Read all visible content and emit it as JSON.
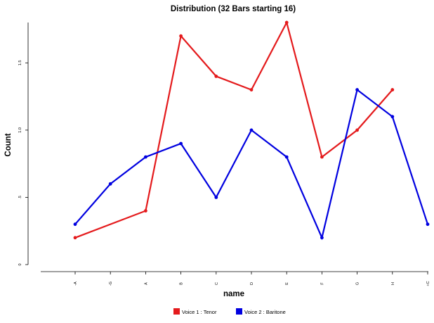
{
  "chart_data": {
    "type": "line",
    "title": "Distribution (32 Bars starting 16)",
    "xlabel": "name",
    "ylabel": "Count",
    "categories": [
      "-A",
      "-G",
      "A",
      "B",
      "C",
      "D",
      "E",
      "F",
      "G",
      "H",
      "+C"
    ],
    "yticks": [
      {
        "value": 0,
        "label": "0"
      },
      {
        "value": 0.5,
        "label": ".5"
      },
      {
        "value": 1.0,
        "label": "1.0"
      },
      {
        "value": 1.5,
        "label": "1.5"
      }
    ],
    "ylim": [
      0,
      1.8
    ],
    "grid": false,
    "legend_position": "bottom",
    "series": [
      {
        "name": "Voice 1 : Tenor",
        "color": "#e41a1c",
        "values": [
          0.2,
          null,
          0.4,
          1.7,
          1.4,
          1.3,
          1.8,
          0.8,
          1.0,
          1.3,
          null
        ]
      },
      {
        "name": "Voice 2 : Baritone",
        "color": "#0000e0",
        "values": [
          0.3,
          0.6,
          0.8,
          0.9,
          0.5,
          1.0,
          0.8,
          0.2,
          1.3,
          1.1,
          0.3
        ]
      }
    ]
  }
}
